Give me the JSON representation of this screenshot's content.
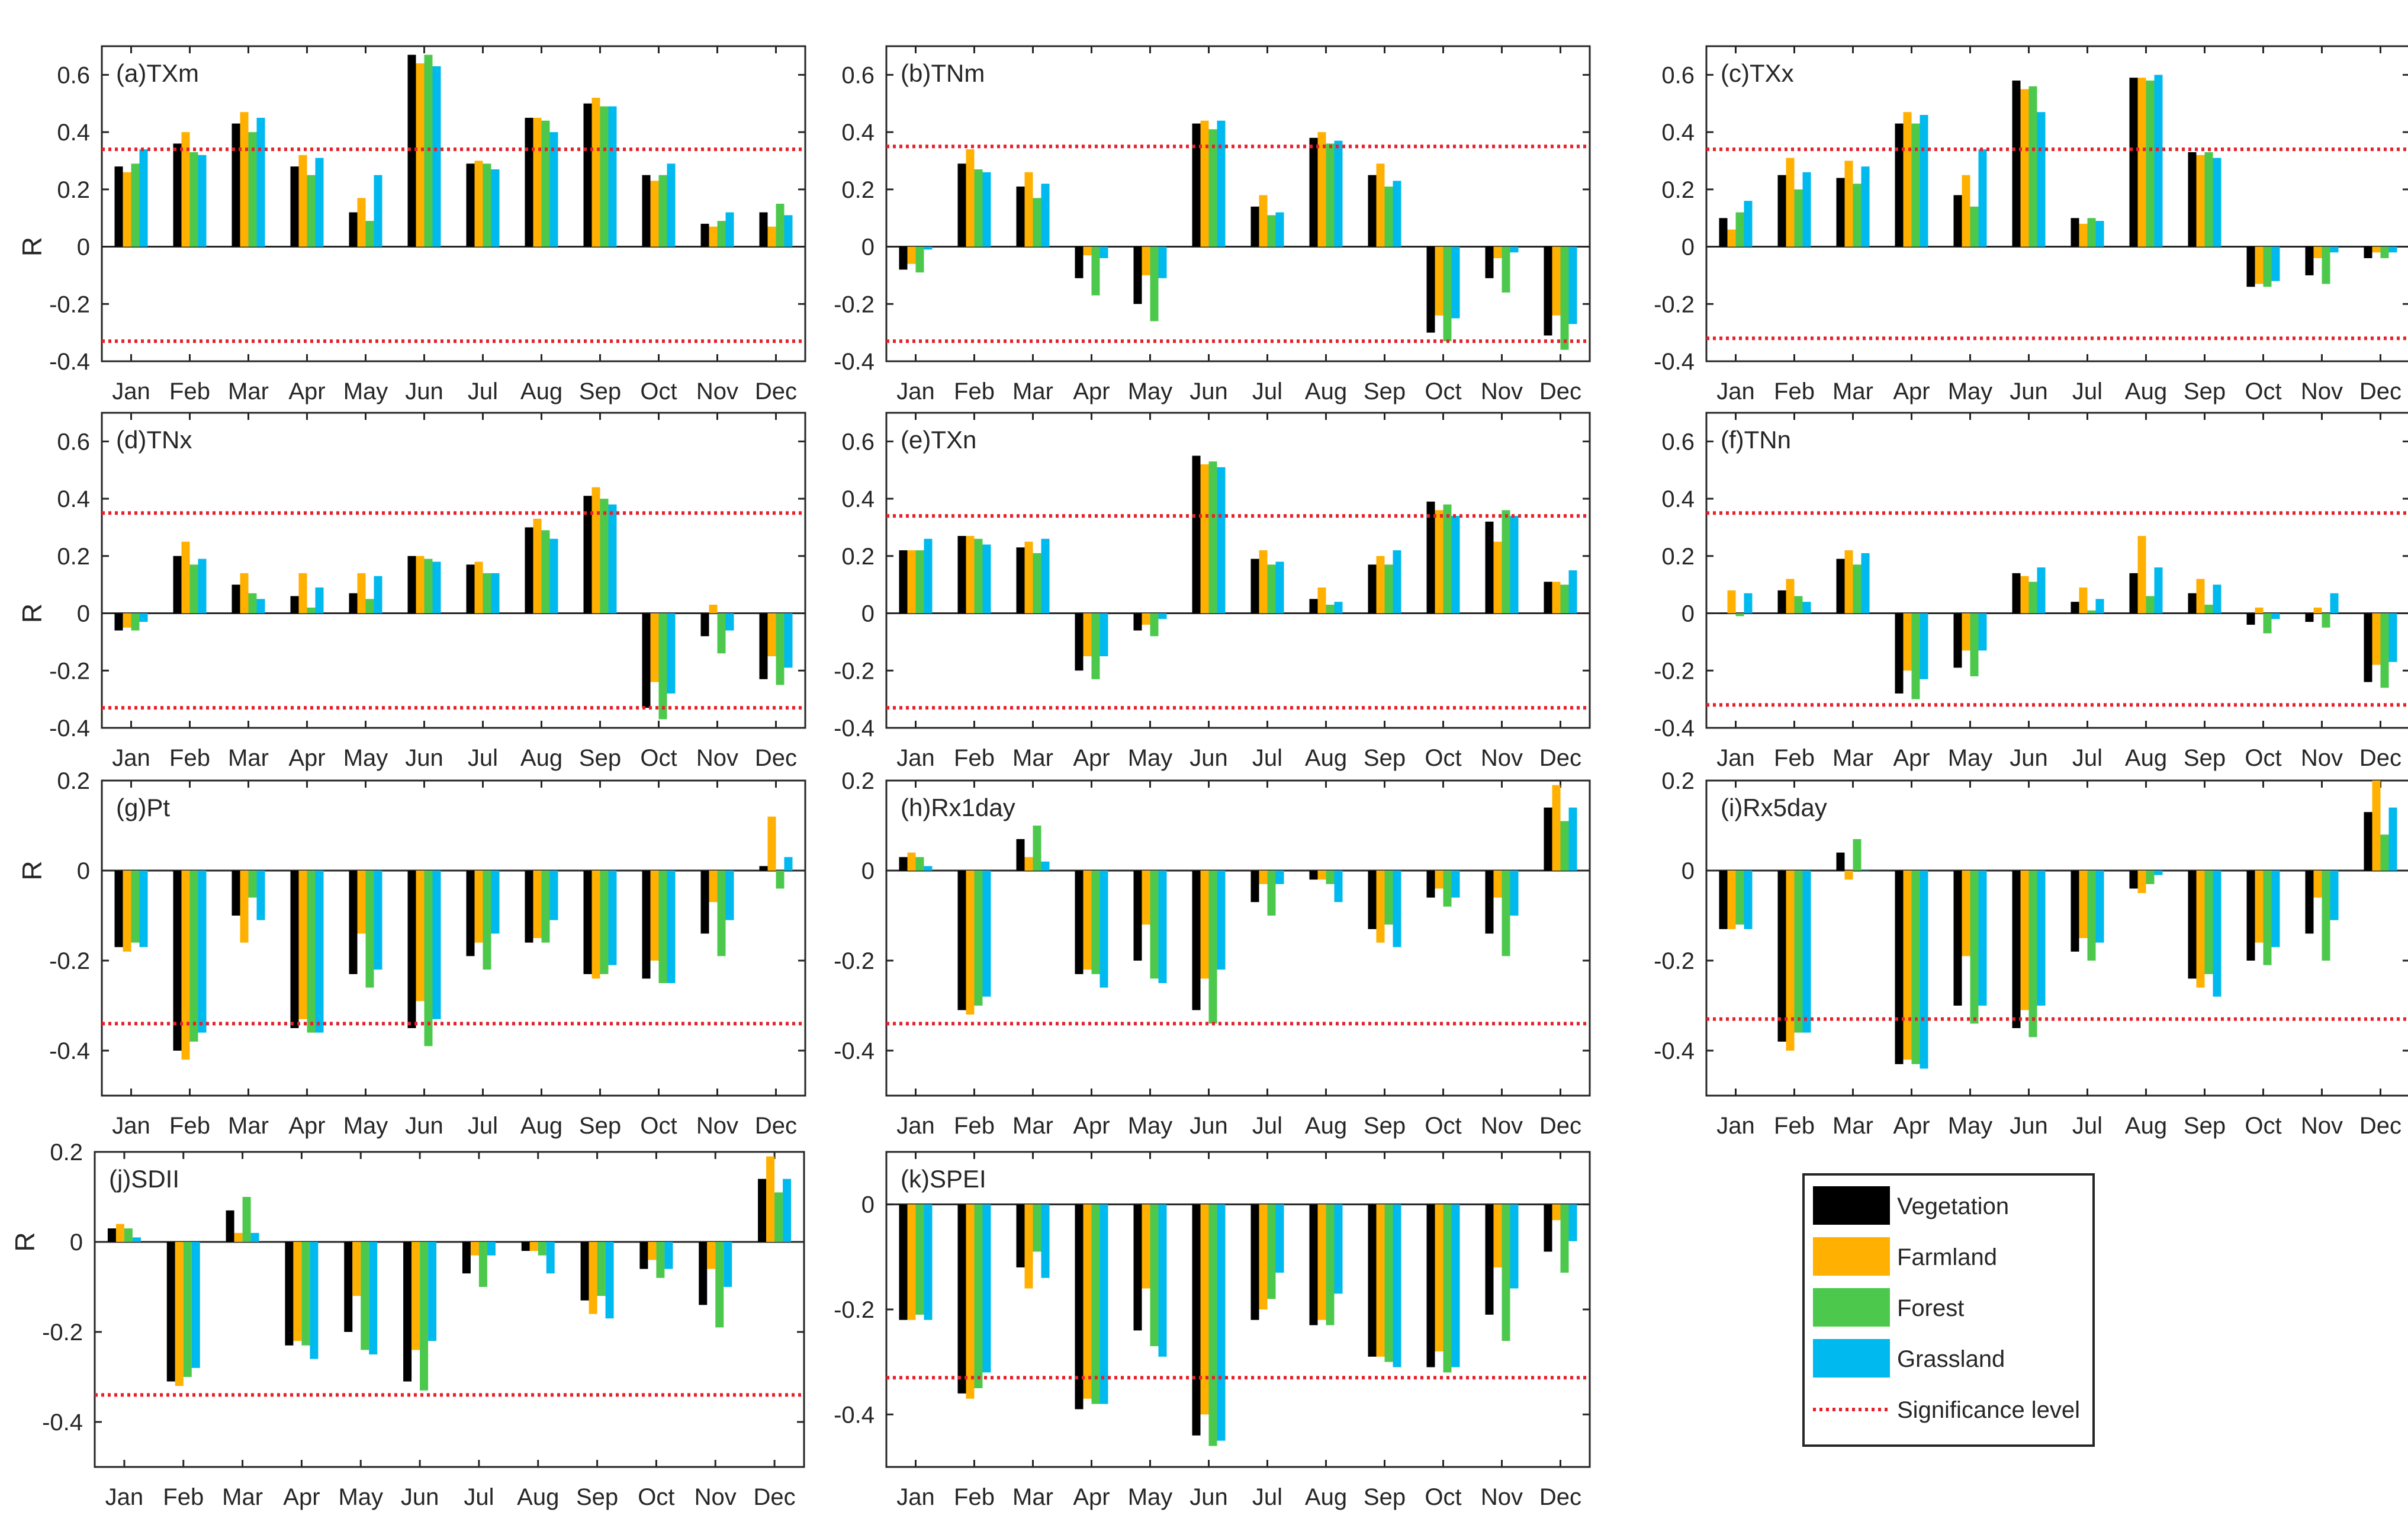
{
  "months": [
    "Jan",
    "Feb",
    "Mar",
    "Apr",
    "May",
    "Jun",
    "Jul",
    "Aug",
    "Sep",
    "Oct",
    "Nov",
    "Dec"
  ],
  "series_names": [
    "Vegetation",
    "Farmland",
    "Forest",
    "Grassland"
  ],
  "colors": {
    "Vegetation": "#000000",
    "Farmland": "#ffb000",
    "Forest": "#4cc94c",
    "Grassland": "#00b9ee",
    "Significance": "#e8202a"
  },
  "legend": {
    "entries": [
      "Vegetation",
      "Farmland",
      "Forest",
      "Grassland"
    ],
    "significance_label": "Significance level"
  },
  "chart_data": [
    {
      "type": "bar",
      "title": "(a)TXm",
      "ylabel": "R",
      "ylim": [
        -0.4,
        0.7
      ],
      "yticks": [
        -0.4,
        -0.2,
        0,
        0.2,
        0.4,
        0.6
      ],
      "significance": [
        0.34,
        -0.33
      ],
      "series": [
        {
          "name": "Vegetation",
          "values": [
            0.28,
            0.36,
            0.43,
            0.28,
            0.12,
            0.67,
            0.29,
            0.45,
            0.5,
            0.25,
            0.08,
            0.12
          ]
        },
        {
          "name": "Farmland",
          "values": [
            0.26,
            0.4,
            0.47,
            0.32,
            0.17,
            0.64,
            0.3,
            0.45,
            0.52,
            0.23,
            0.07,
            0.07
          ]
        },
        {
          "name": "Forest",
          "values": [
            0.29,
            0.33,
            0.4,
            0.25,
            0.09,
            0.67,
            0.29,
            0.44,
            0.49,
            0.25,
            0.09,
            0.15
          ]
        },
        {
          "name": "Grassland",
          "values": [
            0.34,
            0.32,
            0.45,
            0.31,
            0.25,
            0.63,
            0.27,
            0.4,
            0.49,
            0.29,
            0.12,
            0.11
          ]
        }
      ]
    },
    {
      "type": "bar",
      "title": "(b)TNm",
      "ylabel": "",
      "ylim": [
        -0.4,
        0.7
      ],
      "yticks": [
        -0.4,
        -0.2,
        0,
        0.2,
        0.4,
        0.6
      ],
      "significance": [
        0.35,
        -0.33
      ],
      "series": [
        {
          "name": "Vegetation",
          "values": [
            -0.08,
            0.29,
            0.21,
            -0.11,
            -0.2,
            0.43,
            0.14,
            0.38,
            0.25,
            -0.3,
            -0.11,
            -0.31
          ]
        },
        {
          "name": "Farmland",
          "values": [
            -0.06,
            0.34,
            0.26,
            -0.03,
            -0.1,
            0.44,
            0.18,
            0.4,
            0.29,
            -0.24,
            -0.04,
            -0.24
          ]
        },
        {
          "name": "Forest",
          "values": [
            -0.09,
            0.27,
            0.17,
            -0.17,
            -0.26,
            0.41,
            0.11,
            0.36,
            0.21,
            -0.33,
            -0.16,
            -0.36
          ]
        },
        {
          "name": "Grassland",
          "values": [
            -0.01,
            0.26,
            0.22,
            -0.04,
            -0.11,
            0.44,
            0.12,
            0.37,
            0.23,
            -0.25,
            -0.02,
            -0.27
          ]
        }
      ]
    },
    {
      "type": "bar",
      "title": "(c)TXx",
      "ylabel": "",
      "ylim": [
        -0.4,
        0.7
      ],
      "yticks": [
        -0.4,
        -0.2,
        0,
        0.2,
        0.4,
        0.6
      ],
      "significance": [
        0.34,
        -0.32
      ],
      "series": [
        {
          "name": "Vegetation",
          "values": [
            0.1,
            0.25,
            0.24,
            0.43,
            0.18,
            0.58,
            0.1,
            0.59,
            0.33,
            -0.14,
            -0.1,
            -0.04
          ]
        },
        {
          "name": "Farmland",
          "values": [
            0.06,
            0.31,
            0.3,
            0.47,
            0.25,
            0.55,
            0.08,
            0.59,
            0.32,
            -0.13,
            -0.04,
            -0.02
          ]
        },
        {
          "name": "Forest",
          "values": [
            0.12,
            0.2,
            0.22,
            0.43,
            0.14,
            0.56,
            0.1,
            0.58,
            0.33,
            -0.14,
            -0.13,
            -0.04
          ]
        },
        {
          "name": "Grassland",
          "values": [
            0.16,
            0.26,
            0.28,
            0.46,
            0.34,
            0.47,
            0.09,
            0.6,
            0.31,
            -0.12,
            -0.02,
            -0.02
          ]
        }
      ]
    },
    {
      "type": "bar",
      "title": "(d)TNx",
      "ylabel": "R",
      "ylim": [
        -0.4,
        0.7
      ],
      "yticks": [
        -0.4,
        -0.2,
        0,
        0.2,
        0.4,
        0.6
      ],
      "significance": [
        0.35,
        -0.33
      ],
      "series": [
        {
          "name": "Vegetation",
          "values": [
            -0.06,
            0.2,
            0.1,
            0.06,
            0.07,
            0.2,
            0.17,
            0.3,
            0.41,
            -0.33,
            -0.08,
            -0.23
          ]
        },
        {
          "name": "Farmland",
          "values": [
            -0.05,
            0.25,
            0.14,
            0.14,
            0.14,
            0.2,
            0.18,
            0.33,
            0.44,
            -0.24,
            0.03,
            -0.15
          ]
        },
        {
          "name": "Forest",
          "values": [
            -0.06,
            0.17,
            0.07,
            0.02,
            0.05,
            0.19,
            0.14,
            0.29,
            0.4,
            -0.37,
            -0.14,
            -0.25
          ]
        },
        {
          "name": "Grassland",
          "values": [
            -0.03,
            0.19,
            0.05,
            0.09,
            0.13,
            0.18,
            0.14,
            0.26,
            0.38,
            -0.28,
            -0.06,
            -0.19
          ]
        }
      ]
    },
    {
      "type": "bar",
      "title": "(e)TXn",
      "ylabel": "",
      "ylim": [
        -0.4,
        0.7
      ],
      "yticks": [
        -0.4,
        -0.2,
        0,
        0.2,
        0.4,
        0.6
      ],
      "significance": [
        0.34,
        -0.33
      ],
      "series": [
        {
          "name": "Vegetation",
          "values": [
            0.22,
            0.27,
            0.23,
            -0.2,
            -0.06,
            0.55,
            0.19,
            0.05,
            0.17,
            0.39,
            0.32,
            0.11
          ]
        },
        {
          "name": "Farmland",
          "values": [
            0.22,
            0.27,
            0.25,
            -0.15,
            -0.04,
            0.52,
            0.22,
            0.09,
            0.2,
            0.36,
            0.25,
            0.11
          ]
        },
        {
          "name": "Forest",
          "values": [
            0.22,
            0.26,
            0.21,
            -0.23,
            -0.08,
            0.53,
            0.17,
            0.03,
            0.17,
            0.38,
            0.36,
            0.1
          ]
        },
        {
          "name": "Grassland",
          "values": [
            0.26,
            0.24,
            0.26,
            -0.15,
            -0.02,
            0.51,
            0.18,
            0.04,
            0.22,
            0.34,
            0.34,
            0.15
          ]
        }
      ]
    },
    {
      "type": "bar",
      "title": "(f)TNn",
      "ylabel": "",
      "ylim": [
        -0.4,
        0.7
      ],
      "yticks": [
        -0.4,
        -0.2,
        0,
        0.2,
        0.4,
        0.6
      ],
      "significance": [
        0.35,
        -0.32
      ],
      "series": [
        {
          "name": "Vegetation",
          "values": [
            0.0,
            0.08,
            0.19,
            -0.28,
            -0.19,
            0.14,
            0.04,
            0.14,
            0.07,
            -0.04,
            -0.03,
            -0.24
          ]
        },
        {
          "name": "Farmland",
          "values": [
            0.08,
            0.12,
            0.22,
            -0.2,
            -0.13,
            0.13,
            0.09,
            0.27,
            0.12,
            0.02,
            0.02,
            -0.18
          ]
        },
        {
          "name": "Forest",
          "values": [
            -0.01,
            0.06,
            0.17,
            -0.3,
            -0.22,
            0.11,
            0.01,
            0.06,
            0.03,
            -0.07,
            -0.05,
            -0.26
          ]
        },
        {
          "name": "Grassland",
          "values": [
            0.07,
            0.04,
            0.21,
            -0.23,
            -0.13,
            0.16,
            0.05,
            0.16,
            0.1,
            -0.02,
            0.07,
            -0.17
          ]
        }
      ]
    },
    {
      "type": "bar",
      "title": "(g)Pt",
      "ylabel": "R",
      "ylim": [
        -0.5,
        0.2
      ],
      "yticks": [
        -0.4,
        -0.2,
        0,
        0.2
      ],
      "significance": [
        -0.34
      ],
      "series": [
        {
          "name": "Vegetation",
          "values": [
            -0.17,
            -0.4,
            -0.1,
            -0.35,
            -0.23,
            -0.35,
            -0.19,
            -0.16,
            -0.23,
            -0.24,
            -0.14,
            0.01
          ]
        },
        {
          "name": "Farmland",
          "values": [
            -0.18,
            -0.42,
            -0.16,
            -0.33,
            -0.14,
            -0.29,
            -0.16,
            -0.15,
            -0.24,
            -0.2,
            -0.07,
            0.12
          ]
        },
        {
          "name": "Forest",
          "values": [
            -0.16,
            -0.38,
            -0.06,
            -0.36,
            -0.26,
            -0.39,
            -0.22,
            -0.16,
            -0.23,
            -0.25,
            -0.19,
            -0.04
          ]
        },
        {
          "name": "Grassland",
          "values": [
            -0.17,
            -0.36,
            -0.11,
            -0.36,
            -0.22,
            -0.33,
            -0.14,
            -0.11,
            -0.21,
            -0.25,
            -0.11,
            0.03
          ]
        }
      ]
    },
    {
      "type": "bar",
      "title": "(h)Rx1day",
      "ylabel": "",
      "ylim": [
        -0.5,
        0.2
      ],
      "yticks": [
        -0.4,
        -0.2,
        0,
        0.2
      ],
      "significance": [
        -0.34
      ],
      "series": [
        {
          "name": "Vegetation",
          "values": [
            0.03,
            -0.31,
            0.07,
            -0.23,
            -0.2,
            -0.31,
            -0.07,
            -0.02,
            -0.13,
            -0.06,
            -0.14,
            0.14
          ]
        },
        {
          "name": "Farmland",
          "values": [
            0.04,
            -0.32,
            0.03,
            -0.22,
            -0.12,
            -0.24,
            -0.03,
            -0.02,
            -0.16,
            -0.04,
            -0.06,
            0.19
          ]
        },
        {
          "name": "Forest",
          "values": [
            0.03,
            -0.3,
            0.1,
            -0.23,
            -0.24,
            -0.34,
            -0.1,
            -0.03,
            -0.12,
            -0.08,
            -0.19,
            0.11
          ]
        },
        {
          "name": "Grassland",
          "values": [
            0.01,
            -0.28,
            0.02,
            -0.26,
            -0.25,
            -0.22,
            -0.03,
            -0.07,
            -0.17,
            -0.06,
            -0.1,
            0.14
          ]
        }
      ]
    },
    {
      "type": "bar",
      "title": "(i)Rx5day",
      "ylabel": "",
      "ylim": [
        -0.5,
        0.2
      ],
      "yticks": [
        -0.4,
        -0.2,
        0,
        0.2
      ],
      "significance": [
        -0.33
      ],
      "series": [
        {
          "name": "Vegetation",
          "values": [
            -0.13,
            -0.38,
            0.04,
            -0.43,
            -0.3,
            -0.35,
            -0.18,
            -0.04,
            -0.24,
            -0.2,
            -0.14,
            0.13
          ]
        },
        {
          "name": "Farmland",
          "values": [
            -0.13,
            -0.4,
            -0.02,
            -0.42,
            -0.19,
            -0.31,
            -0.15,
            -0.05,
            -0.26,
            -0.16,
            -0.06,
            0.2
          ]
        },
        {
          "name": "Forest",
          "values": [
            -0.12,
            -0.36,
            0.07,
            -0.43,
            -0.34,
            -0.37,
            -0.2,
            -0.03,
            -0.23,
            -0.21,
            -0.2,
            0.08
          ]
        },
        {
          "name": "Grassland",
          "values": [
            -0.13,
            -0.36,
            0.0,
            -0.44,
            -0.3,
            -0.3,
            -0.16,
            -0.01,
            -0.28,
            -0.17,
            -0.11,
            0.14
          ]
        }
      ]
    },
    {
      "type": "bar",
      "title": "(j)SDII",
      "ylabel": "R",
      "ylim": [
        -0.5,
        0.2
      ],
      "yticks": [
        -0.4,
        -0.2,
        0,
        0.2
      ],
      "significance": [
        -0.34
      ],
      "series": [
        {
          "name": "Vegetation",
          "values": [
            0.03,
            -0.31,
            0.07,
            -0.23,
            -0.2,
            -0.31,
            -0.07,
            -0.02,
            -0.13,
            -0.06,
            -0.14,
            0.14
          ]
        },
        {
          "name": "Farmland",
          "values": [
            0.04,
            -0.32,
            0.02,
            -0.22,
            -0.12,
            -0.24,
            -0.03,
            -0.02,
            -0.16,
            -0.04,
            -0.06,
            0.19
          ]
        },
        {
          "name": "Forest",
          "values": [
            0.03,
            -0.3,
            0.1,
            -0.23,
            -0.24,
            -0.33,
            -0.1,
            -0.03,
            -0.12,
            -0.08,
            -0.19,
            0.11
          ]
        },
        {
          "name": "Grassland",
          "values": [
            0.01,
            -0.28,
            0.02,
            -0.26,
            -0.25,
            -0.22,
            -0.03,
            -0.07,
            -0.17,
            -0.06,
            -0.1,
            0.14
          ]
        }
      ]
    },
    {
      "type": "bar",
      "title": "(k)SPEI",
      "ylabel": "",
      "ylim": [
        -0.5,
        0.1
      ],
      "yticks": [
        -0.4,
        -0.2,
        0
      ],
      "significance": [
        -0.33
      ],
      "series": [
        {
          "name": "Vegetation",
          "values": [
            -0.22,
            -0.36,
            -0.12,
            -0.39,
            -0.24,
            -0.44,
            -0.22,
            -0.23,
            -0.29,
            -0.31,
            -0.21,
            -0.09
          ]
        },
        {
          "name": "Farmland",
          "values": [
            -0.22,
            -0.37,
            -0.16,
            -0.37,
            -0.16,
            -0.4,
            -0.2,
            -0.22,
            -0.29,
            -0.28,
            -0.12,
            -0.03
          ]
        },
        {
          "name": "Forest",
          "values": [
            -0.21,
            -0.35,
            -0.09,
            -0.38,
            -0.27,
            -0.46,
            -0.18,
            -0.23,
            -0.3,
            -0.32,
            -0.26,
            -0.13
          ]
        },
        {
          "name": "Grassland",
          "values": [
            -0.22,
            -0.32,
            -0.14,
            -0.38,
            -0.29,
            -0.45,
            -0.13,
            -0.17,
            -0.31,
            -0.31,
            -0.16,
            -0.07
          ]
        }
      ]
    }
  ]
}
